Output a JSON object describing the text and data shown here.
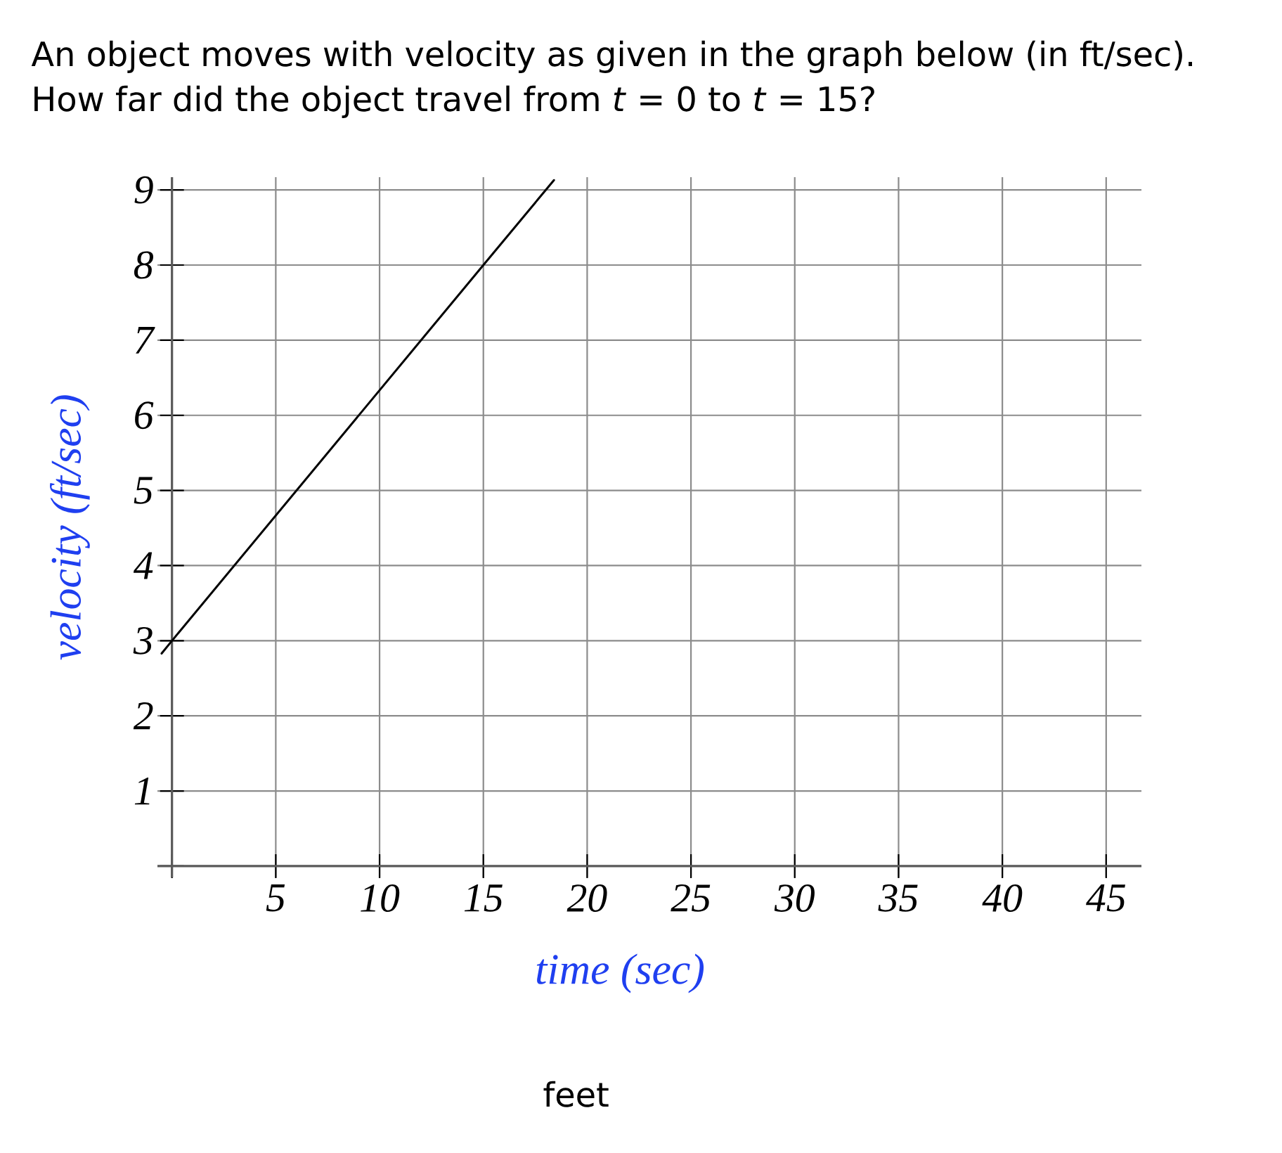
{
  "chart_data": {
    "type": "line",
    "title": "An object moves with velocity as given in the graph below (in ft/sec).",
    "subtitle": "How far did the object travel from *t* = 0 to *t* = 15?",
    "xlabel": "time (sec)",
    "ylabel": "velocity (ft/sec)",
    "series": [
      {
        "color": "#000000",
        "x": [
          -0.5,
          0,
          15,
          18.4
        ],
        "values": [
          2.83,
          3,
          8,
          9.13
        ]
      }
    ],
    "xlim": [
      -0.7,
      46.7
    ],
    "ylim": [
      -0.15,
      9.17
    ],
    "xticks": [
      {
        "value": 0,
        "label": null
      },
      5,
      10,
      15,
      20,
      25,
      30,
      35,
      40,
      45
    ],
    "yticks": [
      {
        "value": 0,
        "label": null
      },
      1,
      2,
      3,
      4,
      5,
      6,
      7,
      8,
      9
    ],
    "grid": true,
    "annotations": [
      "feet"
    ]
  }
}
